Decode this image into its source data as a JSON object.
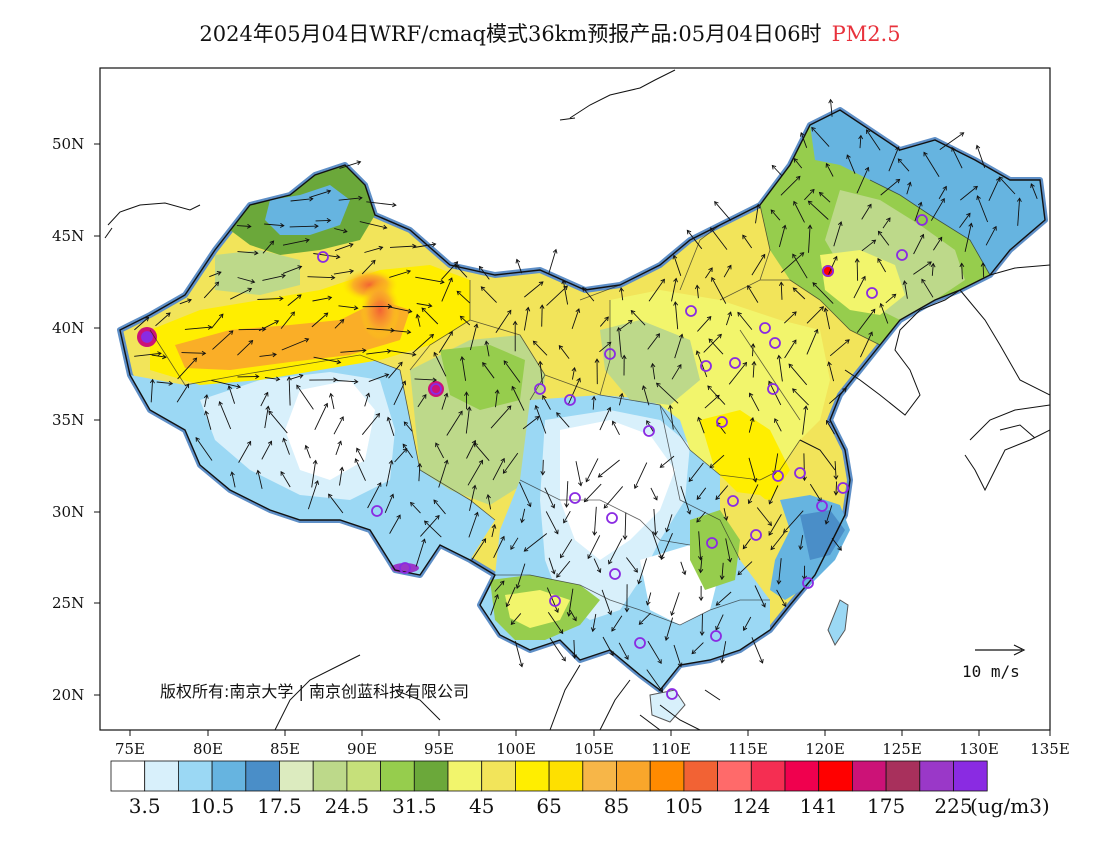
{
  "title": {
    "main": "2024年05月04日WRF/cmaq模式36km预报产品:05月04日06时",
    "pollutant": "PM2.5"
  },
  "lat_ticks": [
    "50N",
    "45N",
    "40N",
    "35N",
    "30N",
    "25N",
    "20N"
  ],
  "lon_ticks": [
    "75E",
    "80E",
    "85E",
    "90E",
    "95E",
    "100E",
    "105E",
    "110E",
    "115E",
    "120E",
    "125E",
    "130E",
    "135E"
  ],
  "copyright": "版权所有:南京大学 | 南京创蓝科技有限公司",
  "wind_scale": "10 m/s",
  "colorbar": {
    "colors": [
      "#ffffff",
      "#d8f0fb",
      "#9bd8f4",
      "#66b4e0",
      "#4a8ec8",
      "#dcebbf",
      "#bdd98a",
      "#c6e07a",
      "#96cd4d",
      "#6ba83a",
      "#f2f56c",
      "#f2e45a",
      "#ffee00",
      "#fee000",
      "#f7b648",
      "#f9a62b",
      "#ff8a00",
      "#f26234",
      "#ff6a6a",
      "#f52e52",
      "#f0004e",
      "#ff0000",
      "#cc1277",
      "#a8305c",
      "#9a38c8",
      "#8a2be2"
    ],
    "labels": [
      "3.5",
      "10.5",
      "17.5",
      "24.5",
      "31.5",
      "45",
      "65",
      "85",
      "105",
      "124",
      "141",
      "175",
      "225"
    ],
    "unit": "(ug/m3)"
  }
}
